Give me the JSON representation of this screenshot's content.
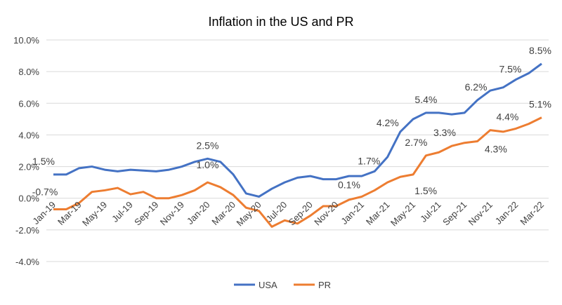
{
  "chart_data": {
    "type": "line",
    "title": "Inflation in the US and PR",
    "xlabel": "",
    "ylabel": "",
    "ylim": [
      -4,
      10
    ],
    "yticks": [
      "-4.0%",
      "-2.0%",
      "0.0%",
      "2.0%",
      "4.0%",
      "6.0%",
      "8.0%",
      "10.0%"
    ],
    "ytick_values": [
      -4,
      -2,
      0,
      2,
      4,
      6,
      8,
      10
    ],
    "grid": true,
    "legend_position": "bottom",
    "x": [
      "Jan-19",
      "Feb-19",
      "Mar-19",
      "Apr-19",
      "May-19",
      "Jun-19",
      "Jul-19",
      "Aug-19",
      "Sep-19",
      "Oct-19",
      "Nov-19",
      "Dec-19",
      "Jan-20",
      "Feb-20",
      "Mar-20",
      "Apr-20",
      "May-20",
      "Jun-20",
      "Jul-20",
      "Aug-20",
      "Sep-20",
      "Oct-20",
      "Nov-20",
      "Dec-20",
      "Jan-21",
      "Feb-21",
      "Mar-21",
      "Apr-21",
      "May-21",
      "Jun-21",
      "Jul-21",
      "Aug-21",
      "Sep-21",
      "Oct-21",
      "Nov-21",
      "Dec-21",
      "Jan-22",
      "Feb-22",
      "Mar-22"
    ],
    "xtick_labels": [
      "Jan-19",
      "Mar-19",
      "May-19",
      "Jul-19",
      "Sep-19",
      "Nov-19",
      "Jan-20",
      "Mar-20",
      "May-20",
      "Jul-20",
      "Sep-20",
      "Nov-20",
      "Jan-21",
      "Mar-21",
      "May-21",
      "Jul-21",
      "Sep-21",
      "Nov-21",
      "Jan-22",
      "Mar-22"
    ],
    "series": [
      {
        "name": "USA",
        "color": "#4472C4",
        "values": [
          1.5,
          1.5,
          1.9,
          2.0,
          1.8,
          1.7,
          1.8,
          1.75,
          1.7,
          1.8,
          2.0,
          2.3,
          2.5,
          2.3,
          1.5,
          0.3,
          0.1,
          0.6,
          1.0,
          1.3,
          1.4,
          1.2,
          1.2,
          1.4,
          1.4,
          1.7,
          2.6,
          4.2,
          5.0,
          5.4,
          5.4,
          5.3,
          5.4,
          6.2,
          6.8,
          7.0,
          7.5,
          7.9,
          8.5
        ],
        "labels": [
          {
            "i": 0,
            "text": "1.5%"
          },
          {
            "i": 12,
            "text": "2.5%"
          },
          {
            "i": 25,
            "text": "1.7%"
          },
          {
            "i": 27,
            "text": "4.2%"
          },
          {
            "i": 29,
            "text": "5.4%"
          },
          {
            "i": 33,
            "text": "6.2%"
          },
          {
            "i": 36,
            "text": "7.5%"
          },
          {
            "i": 38,
            "text": "8.5%"
          }
        ]
      },
      {
        "name": "PR",
        "color": "#ED7D31",
        "values": [
          -0.7,
          -0.7,
          -0.3,
          0.4,
          0.5,
          0.65,
          0.25,
          0.4,
          0.0,
          0.0,
          0.2,
          0.5,
          1.0,
          0.7,
          0.2,
          -0.6,
          -0.8,
          -1.8,
          -1.4,
          -1.6,
          -1.1,
          -0.5,
          -0.5,
          -0.1,
          0.1,
          0.5,
          1.0,
          1.35,
          1.5,
          2.7,
          2.9,
          3.3,
          3.5,
          3.6,
          4.3,
          4.2,
          4.4,
          4.7,
          5.1
        ],
        "labels": [
          {
            "i": 0,
            "text": "-0.7%"
          },
          {
            "i": 12,
            "text": "1.0%"
          },
          {
            "i": 24,
            "text": "0.1%"
          },
          {
            "i": 28,
            "text": "1.5%"
          },
          {
            "i": 29,
            "text": "2.7%"
          },
          {
            "i": 31,
            "text": "3.3%"
          },
          {
            "i": 34,
            "text": "4.3%"
          },
          {
            "i": 36,
            "text": "4.4%"
          },
          {
            "i": 38,
            "text": "5.1%"
          }
        ]
      }
    ]
  }
}
